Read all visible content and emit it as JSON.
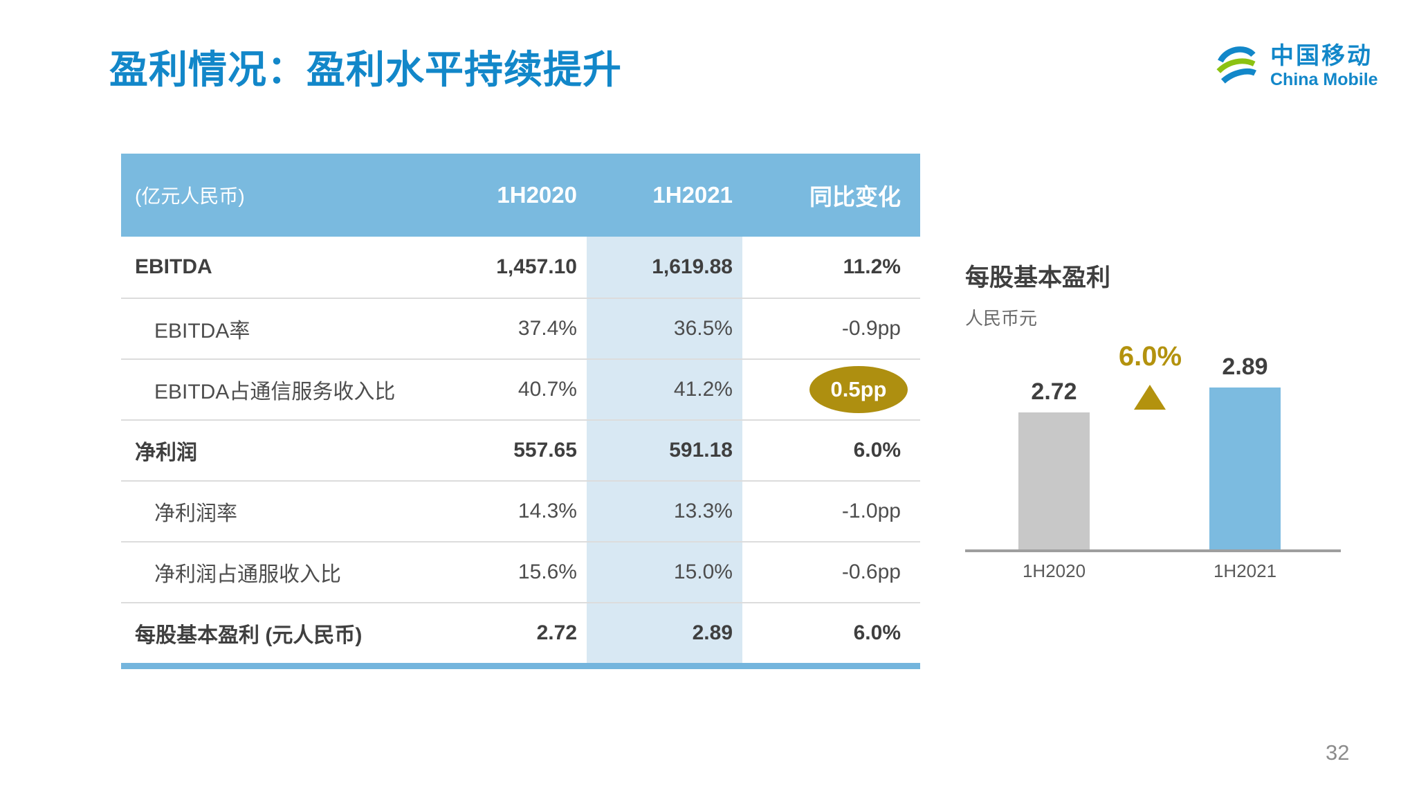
{
  "slide": {
    "title": "盈利情况：盈利水平持续提升",
    "page_number": "32"
  },
  "logo": {
    "zh": "中国移动",
    "en": "China Mobile"
  },
  "table": {
    "header": [
      "(亿元人民币)",
      "1H2020",
      "1H2021",
      "同比变化"
    ],
    "rows": [
      {
        "label": "EBITDA",
        "v2020": "1,457.10",
        "v2021": "1,619.88",
        "yoy": "11.2%"
      },
      {
        "label": "EBITDA率",
        "v2020": "37.4%",
        "v2021": "36.5%",
        "yoy": "-0.9pp"
      },
      {
        "label": "EBITDA占通信服务收入比",
        "v2020": "40.7%",
        "v2021": "41.2%",
        "yoy": "0.5pp"
      },
      {
        "label": "净利润",
        "v2020": "557.65",
        "v2021": "591.18",
        "yoy": "6.0%"
      },
      {
        "label": "净利润率",
        "v2020": "14.3%",
        "v2021": "13.3%",
        "yoy": "-1.0pp"
      },
      {
        "label": "净利润占通服收入比",
        "v2020": "15.6%",
        "v2021": "15.0%",
        "yoy": "-0.6pp"
      },
      {
        "label": "每股基本盈利 (元人民币)",
        "v2020": "2.72",
        "v2021": "2.89",
        "yoy": "6.0%"
      }
    ]
  },
  "chart_data": {
    "type": "bar",
    "title": "每股基本盈利",
    "unit_label": "人民币元",
    "categories": [
      "1H2020",
      "1H2021"
    ],
    "values": [
      2.72,
      2.89
    ],
    "value_labels": [
      "2.72",
      "2.89"
    ],
    "bar_colors": [
      "#C8C8C8",
      "#7CBBE0"
    ],
    "annotation": {
      "text": "6.0%",
      "color": "#B3920E",
      "marker": "triangle-up"
    },
    "ylim": [
      1.8,
      3.0
    ],
    "grid": false,
    "legend": "none"
  },
  "colors": {
    "accent_blue": "#1287C9",
    "header_blue": "#7ABADF",
    "column_highlight": "#D8E8F3",
    "gold": "#AE8F10",
    "logo_green": "#8CC212"
  }
}
